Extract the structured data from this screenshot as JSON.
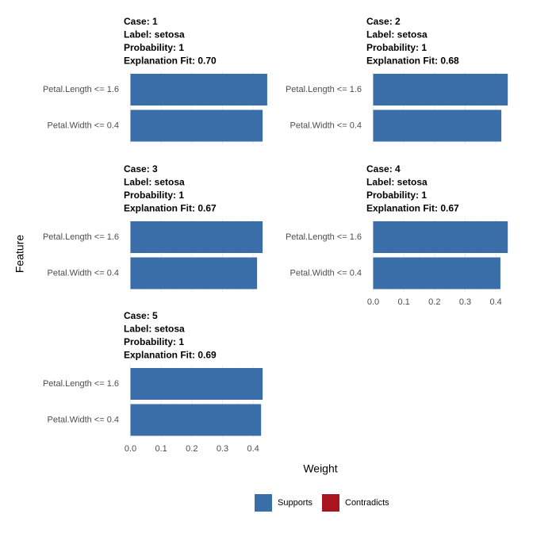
{
  "chart_data": {
    "type": "bar",
    "x_label": "Weight",
    "y_label": "Feature",
    "xlim": [
      -0.022,
      0.454
    ],
    "xticks": [
      {
        "value": 0,
        "label": "0.0"
      },
      {
        "value": 0.1,
        "label": "0.1"
      },
      {
        "value": 0.2,
        "label": "0.2"
      },
      {
        "value": 0.3,
        "label": "0.3"
      },
      {
        "value": 0.4,
        "label": "0.4"
      }
    ],
    "grid": true,
    "legend": [
      {
        "name": "Supports",
        "color": "#3a6ea8"
      },
      {
        "name": "Contradicts",
        "color": "#a8141f"
      }
    ],
    "facets": [
      {
        "title_lines": [
          "Case: 1",
          "Label: setosa",
          "Probability: 1",
          "Explanation Fit: 0.70"
        ],
        "categories": [
          "Petal.Length <= 1.6",
          "Petal.Width <= 0.4"
        ],
        "values": [
          0.446,
          0.431
        ]
      },
      {
        "title_lines": [
          "Case: 2",
          "Label: setosa",
          "Probability: 1",
          "Explanation Fit: 0.68"
        ],
        "categories": [
          "Petal.Length <= 1.6",
          "Petal.Width <= 0.4"
        ],
        "values": [
          0.439,
          0.418
        ]
      },
      {
        "title_lines": [
          "Case: 3",
          "Label: setosa",
          "Probability: 1",
          "Explanation Fit: 0.67"
        ],
        "categories": [
          "Petal.Length <= 1.6",
          "Petal.Width <= 0.4"
        ],
        "values": [
          0.431,
          0.413
        ]
      },
      {
        "title_lines": [
          "Case: 4",
          "Label: setosa",
          "Probability: 1",
          "Explanation Fit: 0.67"
        ],
        "categories": [
          "Petal.Length <= 1.6",
          "Petal.Width <= 0.4"
        ],
        "values": [
          0.439,
          0.415
        ]
      },
      {
        "title_lines": [
          "Case: 5",
          "Label: setosa",
          "Probability: 1",
          "Explanation Fit: 0.69"
        ],
        "categories": [
          "Petal.Length <= 1.6",
          "Petal.Width <= 0.4"
        ],
        "values": [
          0.431,
          0.426
        ]
      }
    ]
  }
}
